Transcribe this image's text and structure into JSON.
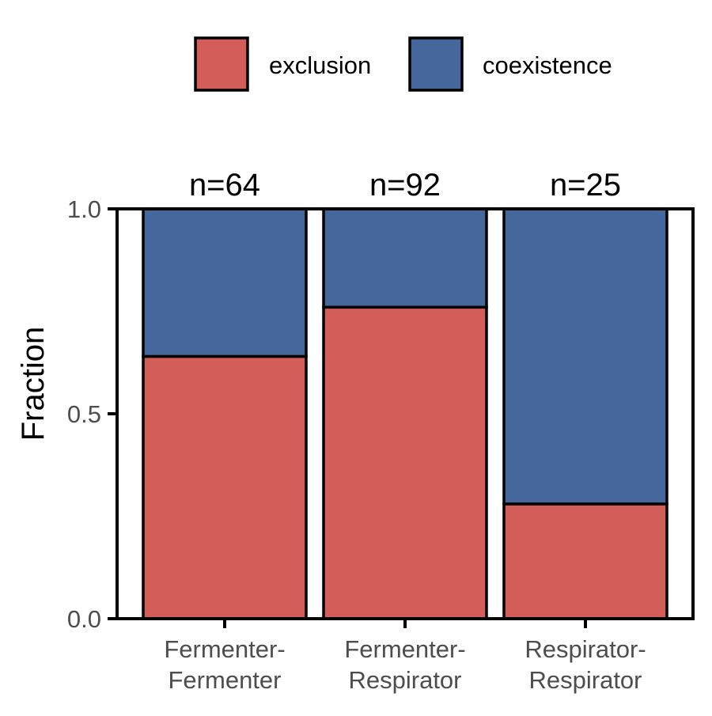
{
  "chart_data": {
    "type": "bar",
    "stacked": true,
    "categories": [
      "Fermenter-Fermenter",
      "Fermenter-Respirator",
      "Respirator-Respirator"
    ],
    "category_label_lines": [
      [
        "Fermenter-",
        "Fermenter"
      ],
      [
        "Fermenter-",
        "Respirator"
      ],
      [
        "Respirator-",
        "Respirator"
      ]
    ],
    "counts": [
      "n=64",
      "n=92",
      "n=25"
    ],
    "series": [
      {
        "name": "exclusion",
        "color": "#D35E59",
        "values": [
          0.64,
          0.76,
          0.28
        ]
      },
      {
        "name": "coexistence",
        "color": "#46679B",
        "values": [
          0.36,
          0.24,
          0.72
        ]
      }
    ],
    "xlabel": "",
    "ylabel": "Fraction",
    "ylim": [
      0,
      1
    ],
    "yticks": [
      "0.0",
      "0.5",
      "1.0"
    ],
    "ytick_values": [
      0,
      0.5,
      1
    ],
    "legend_position": "top",
    "grid": false
  }
}
